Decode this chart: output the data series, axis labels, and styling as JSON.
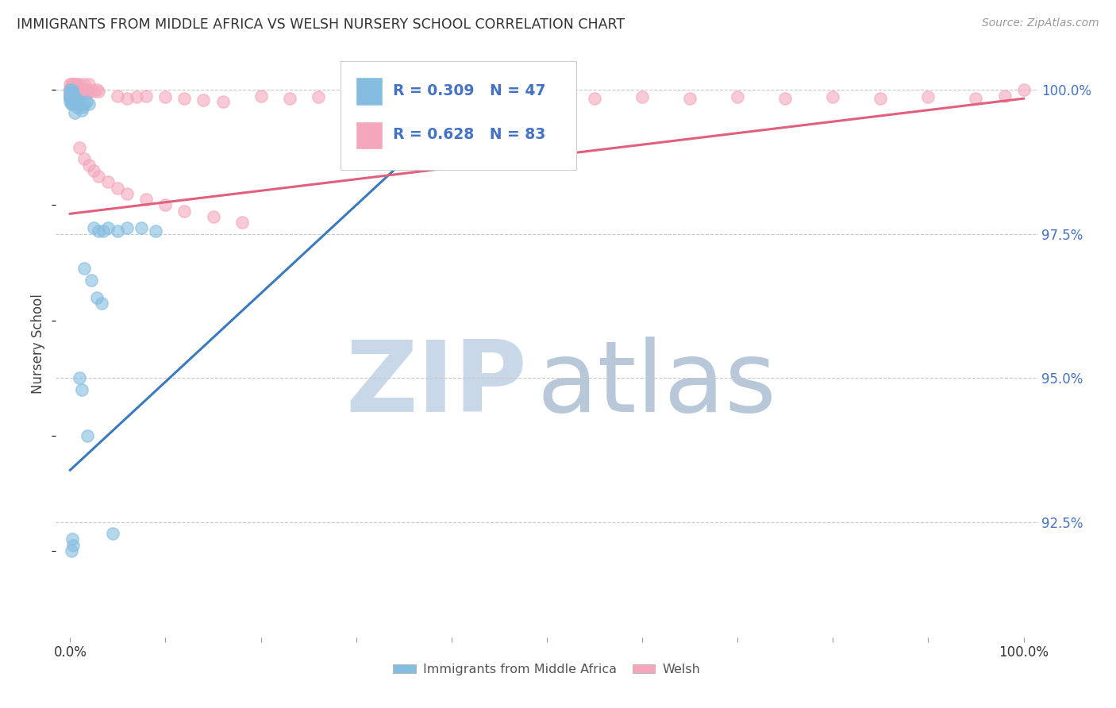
{
  "title": "IMMIGRANTS FROM MIDDLE AFRICA VS WELSH NURSERY SCHOOL CORRELATION CHART",
  "source": "Source: ZipAtlas.com",
  "ylabel": "Nursery School",
  "legend_blue_R": "0.309",
  "legend_blue_N": "47",
  "legend_pink_R": "0.628",
  "legend_pink_N": "83",
  "legend_label_blue": "Immigrants from Middle Africa",
  "legend_label_pink": "Welsh",
  "blue_color": "#85bde0",
  "pink_color": "#f4a7bb",
  "blue_line_color": "#3a7bbf",
  "pink_line_color": "#e0607e",
  "watermark_ZIP_color": "#c8d8e8",
  "watermark_atlas_color": "#b8c8d8",
  "grid_color": "#c8c8c8",
  "ytick_color": "#4472c4",
  "xtick_color": "#333333",
  "blue_line_x": [
    0.0,
    0.45
  ],
  "blue_line_y": [
    0.934,
    1.003
  ],
  "pink_line_x": [
    0.0,
    1.0
  ],
  "pink_line_y": [
    0.9785,
    0.9985
  ],
  "xlim": [
    -0.015,
    1.015
  ],
  "ylim": [
    0.905,
    1.007
  ],
  "yticks": [
    1.0,
    0.975,
    0.95,
    0.925
  ],
  "ytick_labels": [
    "100.0%",
    "97.5%",
    "95.0%",
    "92.5%"
  ],
  "xtick_left_label": "0.0%",
  "xtick_right_label": "100.0%"
}
